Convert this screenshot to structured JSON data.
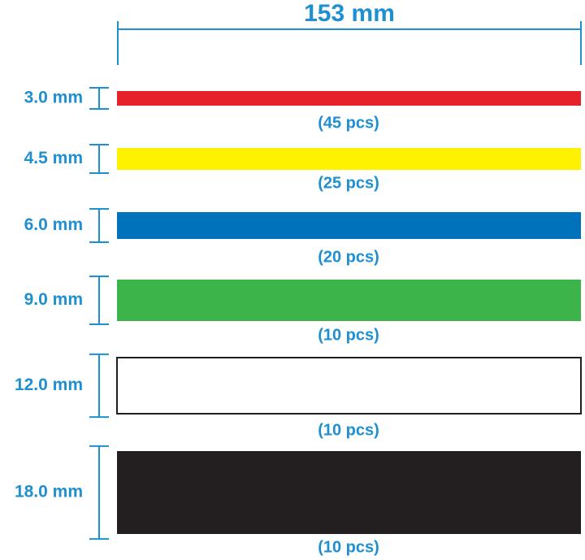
{
  "header": {
    "title": "153 mm"
  },
  "strips": [
    {
      "label": "3.0 mm",
      "count": "(45 pcs)",
      "color": "#e62129"
    },
    {
      "label": "4.5 mm",
      "count": "(25 pcs)",
      "color": "#fff200"
    },
    {
      "label": "6.0 mm",
      "count": "(20 pcs)",
      "color": "#0072bc"
    },
    {
      "label": "9.0 mm",
      "count": "(10 pcs)",
      "color": "#3cb44a"
    },
    {
      "label": "12.0 mm",
      "count": "(10 pcs)",
      "color": "#ffffff"
    },
    {
      "label": "18.0 mm",
      "count": "(10 pcs)",
      "color": "#231f20"
    }
  ]
}
